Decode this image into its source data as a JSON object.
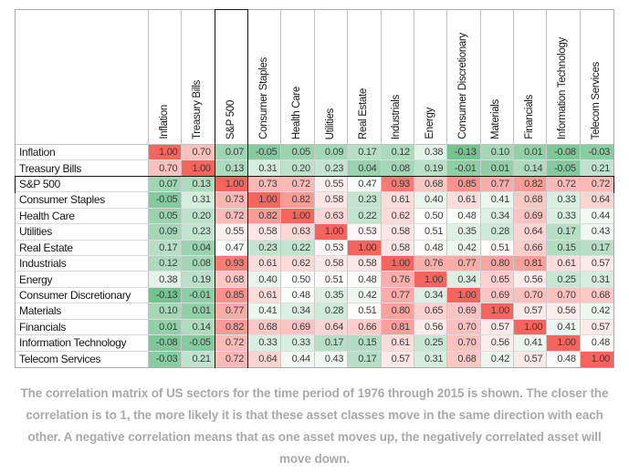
{
  "figure": {
    "caption": "The correlation matrix of US sectors for the time period of 1976 through 2015 is shown. The closer the correlation is to 1, the more likely it is that these asset classes move in the same direction with each other. A negative correlation means that as one asset moves up, the negatively correlated asset will move down.",
    "caption_color": "#a9a9a9",
    "background": "#ffffff"
  },
  "chart_data": {
    "type": "heatmap",
    "title": "",
    "labels": [
      "Inflation",
      "Treasury Bills",
      "S&P 500",
      "Consumer Staples",
      "Health Care",
      "Utilities",
      "Real Estate",
      "Industrials",
      "Energy",
      "Consumer Discretionary",
      "Materials",
      "Financials",
      "Information Technology",
      "Telecom Services"
    ],
    "matrix": [
      [
        1.0,
        0.7,
        0.07,
        -0.05,
        0.05,
        0.09,
        0.17,
        0.12,
        0.38,
        -0.13,
        0.1,
        0.01,
        -0.08,
        -0.03
      ],
      [
        0.7,
        1.0,
        0.13,
        0.31,
        0.2,
        0.23,
        0.04,
        0.08,
        0.19,
        -0.01,
        0.01,
        0.14,
        -0.05,
        0.21
      ],
      [
        0.07,
        0.13,
        1.0,
        0.73,
        0.72,
        0.55,
        0.47,
        0.93,
        0.68,
        0.85,
        0.77,
        0.82,
        0.72,
        0.72
      ],
      [
        -0.05,
        0.31,
        0.73,
        1.0,
        0.82,
        0.58,
        0.23,
        0.61,
        0.4,
        0.61,
        0.41,
        0.68,
        0.33,
        0.64
      ],
      [
        0.05,
        0.2,
        0.72,
        0.82,
        1.0,
        0.63,
        0.22,
        0.62,
        0.5,
        0.48,
        0.34,
        0.69,
        0.33,
        0.44
      ],
      [
        0.09,
        0.23,
        0.55,
        0.58,
        0.63,
        1.0,
        0.53,
        0.58,
        0.51,
        0.35,
        0.28,
        0.64,
        0.17,
        0.43
      ],
      [
        0.17,
        0.04,
        0.47,
        0.23,
        0.22,
        0.53,
        1.0,
        0.58,
        0.48,
        0.42,
        0.51,
        0.66,
        0.15,
        0.17
      ],
      [
        0.12,
        0.08,
        0.93,
        0.61,
        0.62,
        0.58,
        0.58,
        1.0,
        0.76,
        0.77,
        0.8,
        0.81,
        0.61,
        0.57
      ],
      [
        0.38,
        0.19,
        0.68,
        0.4,
        0.5,
        0.51,
        0.48,
        0.76,
        1.0,
        0.34,
        0.65,
        0.56,
        0.25,
        0.31
      ],
      [
        -0.13,
        -0.01,
        0.85,
        0.61,
        0.48,
        0.35,
        0.42,
        0.77,
        0.34,
        1.0,
        0.69,
        0.7,
        0.7,
        0.68
      ],
      [
        0.1,
        0.01,
        0.77,
        0.41,
        0.34,
        0.28,
        0.51,
        0.8,
        0.65,
        0.69,
        1.0,
        0.57,
        0.56,
        0.42
      ],
      [
        0.01,
        0.14,
        0.82,
        0.68,
        0.69,
        0.64,
        0.66,
        0.81,
        0.56,
        0.7,
        0.57,
        1.0,
        0.41,
        0.57
      ],
      [
        -0.08,
        -0.05,
        0.72,
        0.33,
        0.33,
        0.17,
        0.15,
        0.61,
        0.25,
        0.7,
        0.56,
        0.41,
        1.0,
        0.48
      ],
      [
        -0.03,
        0.21,
        0.72,
        0.64,
        0.44,
        0.43,
        0.17,
        0.57,
        0.31,
        0.68,
        0.42,
        0.57,
        0.48,
        1.0
      ]
    ],
    "value_format": "2dp",
    "highlighted_label": "S&P 500",
    "highlighted_index": 2,
    "highlight_border_color": "#161616",
    "color_scale": {
      "type": "diverging",
      "low_color": "#6fc08c",
      "neutral_color": "#ffffff",
      "high_color": "#f4655e",
      "midpoint": 0.5,
      "min": -0.15,
      "max": 1.0
    },
    "grid": true,
    "legend": false
  }
}
